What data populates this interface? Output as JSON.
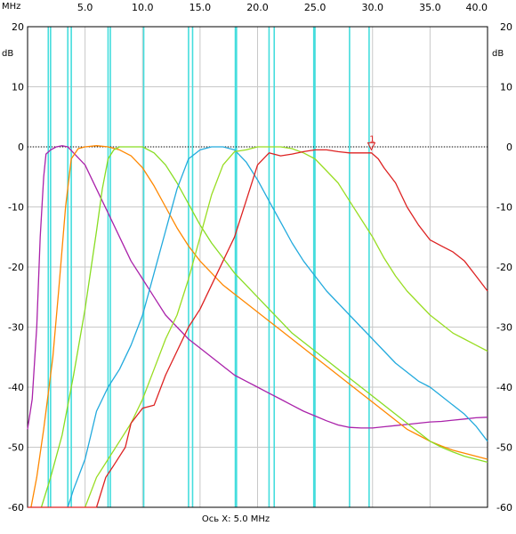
{
  "chart_data": {
    "type": "line",
    "x_unit": "MHz",
    "y_unit": "dB",
    "xlabel": "Ось X: 5.0 MHz",
    "xlim": [
      0,
      40
    ],
    "ylim": [
      -60,
      20
    ],
    "x_ticks": [
      {
        "v": 5,
        "label": "5.0"
      },
      {
        "v": 10,
        "label": "10.0"
      },
      {
        "v": 15,
        "label": "15.0"
      },
      {
        "v": 20,
        "label": "20.0"
      },
      {
        "v": 25,
        "label": "25.0"
      },
      {
        "v": 30,
        "label": "30.0"
      },
      {
        "v": 35,
        "label": "35.0"
      },
      {
        "v": 40,
        "label": "40.0"
      }
    ],
    "y_ticks": [
      {
        "v": 20,
        "label": "20"
      },
      {
        "v": 10,
        "label": "10"
      },
      {
        "v": 0,
        "label": "0"
      },
      {
        "v": -10,
        "label": "-10"
      },
      {
        "v": -20,
        "label": "-20"
      },
      {
        "v": -30,
        "label": "-30"
      },
      {
        "v": -40,
        "label": "-40"
      },
      {
        "v": -50,
        "label": "-50"
      },
      {
        "v": -60,
        "label": "-60"
      }
    ],
    "grid": true,
    "reference_line": {
      "y": 0,
      "style": "dotted"
    },
    "marker": {
      "label": "1",
      "x": 29.9,
      "y": -0.5
    },
    "band_lines": {
      "color": "#44dddd",
      "x": [
        1.8,
        2.0,
        3.5,
        3.8,
        7.0,
        7.2,
        10.1,
        14.0,
        14.35,
        18.07,
        18.17,
        21.0,
        21.45,
        24.89,
        24.99,
        28.0,
        29.7
      ]
    },
    "series": [
      {
        "color": "#aa22aa",
        "points": [
          [
            0,
            -47
          ],
          [
            0.4,
            -42
          ],
          [
            0.8,
            -30
          ],
          [
            1.1,
            -15
          ],
          [
            1.4,
            -5
          ],
          [
            1.6,
            -1.2
          ],
          [
            2,
            -0.5
          ],
          [
            2.5,
            0
          ],
          [
            3,
            0.2
          ],
          [
            3.5,
            0
          ],
          [
            4,
            -1
          ],
          [
            5,
            -3
          ],
          [
            6,
            -7
          ],
          [
            7,
            -11
          ],
          [
            8,
            -15
          ],
          [
            9,
            -19
          ],
          [
            10,
            -22
          ],
          [
            11,
            -25
          ],
          [
            12,
            -28
          ],
          [
            13,
            -30
          ],
          [
            14,
            -32
          ],
          [
            15,
            -33.5
          ],
          [
            16,
            -35
          ],
          [
            17,
            -36.5
          ],
          [
            18,
            -38
          ],
          [
            19,
            -39
          ],
          [
            20,
            -40
          ],
          [
            21,
            -41
          ],
          [
            22,
            -42
          ],
          [
            23,
            -43
          ],
          [
            24,
            -44
          ],
          [
            25,
            -44.8
          ],
          [
            26,
            -45.6
          ],
          [
            27,
            -46.3
          ],
          [
            28,
            -46.7
          ],
          [
            29,
            -46.8
          ],
          [
            30,
            -46.8
          ],
          [
            31,
            -46.6
          ],
          [
            32,
            -46.4
          ],
          [
            33,
            -46.2
          ],
          [
            34,
            -46
          ],
          [
            35,
            -45.8
          ],
          [
            36,
            -45.7
          ],
          [
            37,
            -45.5
          ],
          [
            38,
            -45.3
          ],
          [
            39,
            -45.1
          ],
          [
            40,
            -45
          ]
        ]
      },
      {
        "color": "#ff8800",
        "points": [
          [
            0.3,
            -60
          ],
          [
            0.8,
            -55
          ],
          [
            1.4,
            -47
          ],
          [
            2.2,
            -35
          ],
          [
            2.7,
            -24
          ],
          [
            3.3,
            -10
          ],
          [
            3.8,
            -2
          ],
          [
            4.4,
            -0.3
          ],
          [
            5,
            0
          ],
          [
            6,
            0.2
          ],
          [
            7,
            0
          ],
          [
            8,
            -0.5
          ],
          [
            9,
            -1.5
          ],
          [
            10,
            -3.5
          ],
          [
            11,
            -6.5
          ],
          [
            12,
            -10
          ],
          [
            13,
            -13.5
          ],
          [
            14,
            -16.5
          ],
          [
            15,
            -19
          ],
          [
            16,
            -21
          ],
          [
            17,
            -23
          ],
          [
            18,
            -24.5
          ],
          [
            19,
            -26
          ],
          [
            20,
            -27.5
          ],
          [
            21,
            -29
          ],
          [
            22,
            -30.5
          ],
          [
            23,
            -32
          ],
          [
            24,
            -33.5
          ],
          [
            25,
            -35
          ],
          [
            26,
            -36.5
          ],
          [
            27,
            -38
          ],
          [
            28,
            -39.5
          ],
          [
            29,
            -41
          ],
          [
            30,
            -42.5
          ],
          [
            31,
            -44
          ],
          [
            32,
            -45.5
          ],
          [
            33,
            -47
          ],
          [
            34,
            -48
          ],
          [
            35,
            -49
          ],
          [
            36,
            -49.8
          ],
          [
            37,
            -50.5
          ],
          [
            38,
            -51
          ],
          [
            39,
            -51.5
          ],
          [
            40,
            -52
          ]
        ]
      },
      {
        "color": "#88dd22",
        "points": [
          [
            1.2,
            -60
          ],
          [
            2,
            -55
          ],
          [
            3,
            -48
          ],
          [
            4,
            -38
          ],
          [
            5,
            -27
          ],
          [
            6,
            -14
          ],
          [
            6.5,
            -7
          ],
          [
            7,
            -2
          ],
          [
            7.5,
            -0.5
          ],
          [
            8,
            0
          ],
          [
            9,
            0
          ],
          [
            10,
            0
          ],
          [
            11,
            -1
          ],
          [
            12,
            -3
          ],
          [
            13,
            -6
          ],
          [
            14,
            -9.5
          ],
          [
            15,
            -13
          ],
          [
            16,
            -16
          ],
          [
            17,
            -18.5
          ],
          [
            18,
            -21
          ],
          [
            19,
            -23
          ],
          [
            20,
            -25
          ],
          [
            21,
            -27
          ],
          [
            22,
            -29
          ],
          [
            23,
            -31
          ],
          [
            24,
            -32.5
          ],
          [
            25,
            -34
          ],
          [
            26,
            -35.5
          ],
          [
            27,
            -37
          ],
          [
            28,
            -38.5
          ],
          [
            29,
            -40
          ],
          [
            30,
            -41.5
          ],
          [
            31,
            -43
          ],
          [
            32,
            -44.5
          ],
          [
            33,
            -46
          ],
          [
            34,
            -47.5
          ],
          [
            35,
            -49
          ],
          [
            36,
            -50
          ],
          [
            37,
            -50.8
          ],
          [
            38,
            -51.5
          ],
          [
            39,
            -52
          ],
          [
            40,
            -52.5
          ]
        ]
      },
      {
        "color": "#22aadd",
        "points": [
          [
            3.5,
            -60
          ],
          [
            4,
            -57
          ],
          [
            4.5,
            -54.5
          ],
          [
            5,
            -52
          ],
          [
            5.5,
            -48
          ],
          [
            6,
            -44
          ],
          [
            7,
            -40
          ],
          [
            8,
            -37
          ],
          [
            9,
            -33
          ],
          [
            10,
            -28
          ],
          [
            11,
            -21
          ],
          [
            12,
            -14
          ],
          [
            13,
            -7
          ],
          [
            14,
            -2
          ],
          [
            15,
            -0.5
          ],
          [
            16,
            0
          ],
          [
            17,
            0
          ],
          [
            18,
            -0.5
          ],
          [
            19,
            -2.5
          ],
          [
            20,
            -5.5
          ],
          [
            21,
            -9
          ],
          [
            22,
            -12.5
          ],
          [
            23,
            -16
          ],
          [
            24,
            -19
          ],
          [
            25,
            -21.5
          ],
          [
            26,
            -24
          ],
          [
            27,
            -26
          ],
          [
            28,
            -28
          ],
          [
            29,
            -30
          ],
          [
            30,
            -32
          ],
          [
            31,
            -34
          ],
          [
            32,
            -36
          ],
          [
            33,
            -37.5
          ],
          [
            34,
            -39
          ],
          [
            35,
            -40
          ],
          [
            36,
            -41.5
          ],
          [
            37,
            -43
          ],
          [
            38,
            -44.5
          ],
          [
            39,
            -46.5
          ],
          [
            40,
            -49
          ]
        ]
      },
      {
        "color": "#99dd22",
        "points": [
          [
            5,
            -60
          ],
          [
            6,
            -55
          ],
          [
            7,
            -52
          ],
          [
            8,
            -49
          ],
          [
            9,
            -46
          ],
          [
            10,
            -42
          ],
          [
            11,
            -37
          ],
          [
            12,
            -32
          ],
          [
            13,
            -28
          ],
          [
            14,
            -22
          ],
          [
            15,
            -15
          ],
          [
            16,
            -8
          ],
          [
            17,
            -3
          ],
          [
            18,
            -0.8
          ],
          [
            19,
            -0.5
          ],
          [
            20,
            0
          ],
          [
            21,
            0
          ],
          [
            22,
            0
          ],
          [
            23,
            -0.3
          ],
          [
            24,
            -1
          ],
          [
            25,
            -2
          ],
          [
            26,
            -4
          ],
          [
            27,
            -6
          ],
          [
            28,
            -9
          ],
          [
            29,
            -12
          ],
          [
            30,
            -15
          ],
          [
            31,
            -18.5
          ],
          [
            32,
            -21.5
          ],
          [
            33,
            -24
          ],
          [
            34,
            -26
          ],
          [
            35,
            -28
          ],
          [
            36,
            -29.5
          ],
          [
            37,
            -31
          ],
          [
            38,
            -32
          ],
          [
            39,
            -33
          ],
          [
            40,
            -34
          ]
        ]
      },
      {
        "color": "#dd2222",
        "points": [
          [
            0,
            -60
          ],
          [
            5,
            -60
          ],
          [
            6,
            -60
          ],
          [
            6.8,
            -55
          ],
          [
            7.5,
            -53
          ],
          [
            8.5,
            -50
          ],
          [
            9,
            -46
          ],
          [
            10,
            -43.5
          ],
          [
            11,
            -43
          ],
          [
            12,
            -38
          ],
          [
            13,
            -34
          ],
          [
            14,
            -30
          ],
          [
            15,
            -27
          ],
          [
            16,
            -23
          ],
          [
            17,
            -19
          ],
          [
            18,
            -15
          ],
          [
            19,
            -9
          ],
          [
            20,
            -3
          ],
          [
            21,
            -1
          ],
          [
            22,
            -1.5
          ],
          [
            23,
            -1.2
          ],
          [
            24,
            -0.8
          ],
          [
            25,
            -0.5
          ],
          [
            26,
            -0.5
          ],
          [
            27,
            -0.8
          ],
          [
            28,
            -1
          ],
          [
            29,
            -1
          ],
          [
            29.9,
            -1
          ],
          [
            30.5,
            -2
          ],
          [
            31,
            -3.5
          ],
          [
            32,
            -6
          ],
          [
            33,
            -10
          ],
          [
            34,
            -13
          ],
          [
            35,
            -15.5
          ],
          [
            36,
            -16.5
          ],
          [
            37,
            -17.5
          ],
          [
            38,
            -19
          ],
          [
            39,
            -21.5
          ],
          [
            40,
            -24
          ]
        ]
      }
    ]
  }
}
